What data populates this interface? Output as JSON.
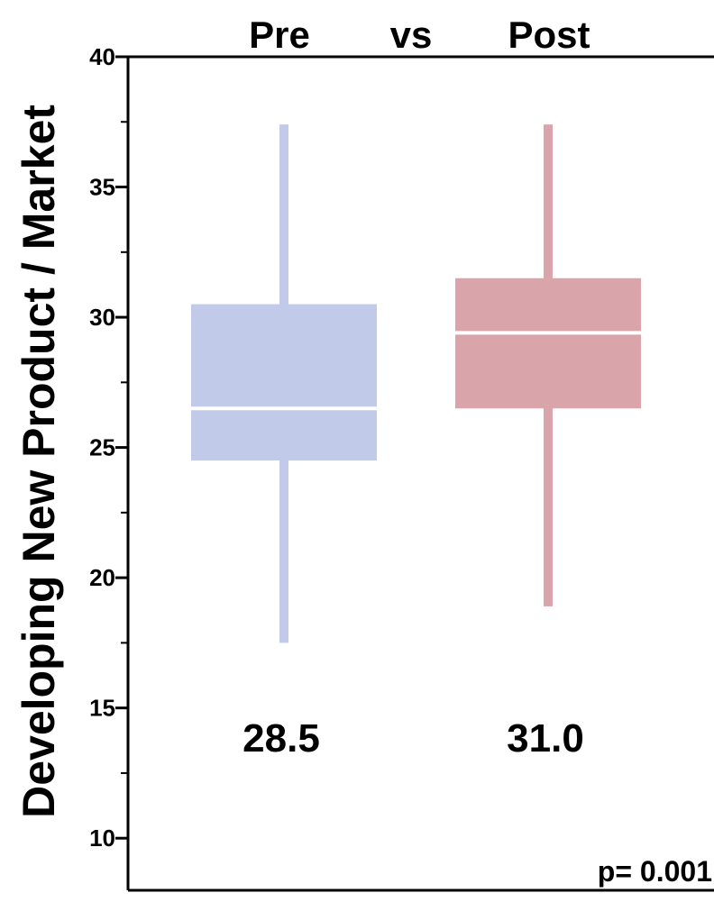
{
  "chart_data": {
    "type": "box",
    "title_parts": [
      "Pre",
      "vs",
      "Post"
    ],
    "ylabel": "Developing New Product / Market",
    "xlabel": "",
    "ylim": [
      8,
      40
    ],
    "yticks_major": [
      10,
      15,
      20,
      25,
      30,
      35,
      40
    ],
    "yticks_minor": [
      12.5,
      17.5,
      22.5,
      27.5,
      32.5,
      37.5
    ],
    "grid": false,
    "groups": [
      {
        "name": "Pre",
        "color": "#c1cae8",
        "whisker_low": 17.5,
        "q1": 24.5,
        "median": 26.5,
        "q3": 30.5,
        "whisker_high": 37.4,
        "mean_label": "28.5"
      },
      {
        "name": "Post",
        "color": "#d9a4aa",
        "whisker_low": 18.9,
        "q1": 26.5,
        "median": 29.4,
        "q3": 31.5,
        "whisker_high": 37.4,
        "mean_label": "31.0"
      }
    ],
    "annotation": "p= 0.001"
  }
}
